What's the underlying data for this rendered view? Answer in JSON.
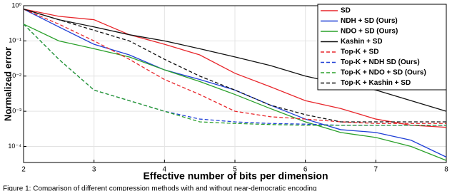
{
  "chart_data": {
    "type": "line",
    "x_label": "Effective number of bits per dimension",
    "y_label": "Normalized error",
    "caption": "Figure 1: Comparison of different compression methods with and without near-democratic encoding",
    "log_y": true,
    "grid": true,
    "legend": "upper right",
    "x": [
      2,
      2.5,
      3,
      3.5,
      4,
      4.5,
      5,
      5.5,
      6,
      6.5,
      7,
      7.5,
      8
    ],
    "xlim": [
      2,
      8
    ],
    "xticks": [
      2,
      3,
      4,
      5,
      6,
      7,
      8
    ],
    "ylim": [
      3.5e-05,
      1
    ],
    "yticks": [
      {
        "value": 1,
        "label": "10⁰"
      },
      {
        "value": 0.1,
        "label": "10⁻¹"
      },
      {
        "value": 0.01,
        "label": "10⁻²"
      },
      {
        "value": 0.001,
        "label": "10⁻³"
      },
      {
        "value": 0.0001,
        "label": "10⁻⁴"
      }
    ],
    "series": [
      {
        "name": "SD",
        "color": "#e8262b",
        "dashed": false,
        "values": [
          0.8,
          0.5,
          0.4,
          0.15,
          0.08,
          0.04,
          0.012,
          0.005,
          0.002,
          0.0012,
          0.0006,
          0.0004,
          0.00035
        ]
      },
      {
        "name": "NDH + SD (Ours)",
        "color": "#1f3fd6",
        "dashed": false,
        "values": [
          0.8,
          0.25,
          0.08,
          0.04,
          0.015,
          0.008,
          0.004,
          0.0015,
          0.0006,
          0.0003,
          0.00025,
          0.00015,
          5e-05
        ]
      },
      {
        "name": "NDO + SD (Ours)",
        "color": "#2aa02a",
        "dashed": false,
        "values": [
          0.3,
          0.1,
          0.06,
          0.035,
          0.015,
          0.007,
          0.003,
          0.0012,
          0.0005,
          0.00025,
          0.00018,
          0.0001,
          4e-05
        ]
      },
      {
        "name": "Kashin + SD",
        "color": "#111111",
        "dashed": false,
        "values": [
          0.8,
          0.4,
          0.25,
          0.15,
          0.1,
          0.06,
          0.035,
          0.02,
          0.01,
          0.006,
          0.004,
          0.002,
          0.001
        ]
      },
      {
        "name": "Top-K + SD",
        "color": "#e8262b",
        "dashed": true,
        "values": [
          0.8,
          0.3,
          0.1,
          0.03,
          0.008,
          0.003,
          0.001,
          0.0007,
          0.0006,
          0.0005,
          0.00045,
          0.00045,
          0.00045
        ]
      },
      {
        "name": "Top-K + NDH  SD (Ours)",
        "color": "#1f3fd6",
        "dashed": true,
        "values": [
          0.3,
          0.03,
          0.004,
          0.002,
          0.001,
          0.0006,
          0.0005,
          0.00045,
          0.00043,
          0.0004,
          0.0004,
          0.0004,
          0.0004
        ]
      },
      {
        "name": "Top-K + NDO + SD (Ours)",
        "color": "#2aa02a",
        "dashed": true,
        "values": [
          0.3,
          0.03,
          0.004,
          0.002,
          0.001,
          0.0005,
          0.00045,
          0.00042,
          0.0004,
          0.0004,
          0.0004,
          0.0004,
          0.0004
        ]
      },
      {
        "name": "Top-K + Kashin + SD",
        "color": "#111111",
        "dashed": true,
        "values": [
          0.8,
          0.4,
          0.2,
          0.1,
          0.03,
          0.01,
          0.004,
          0.0015,
          0.0008,
          0.0005,
          0.0005,
          0.0005,
          0.0005
        ]
      }
    ]
  }
}
